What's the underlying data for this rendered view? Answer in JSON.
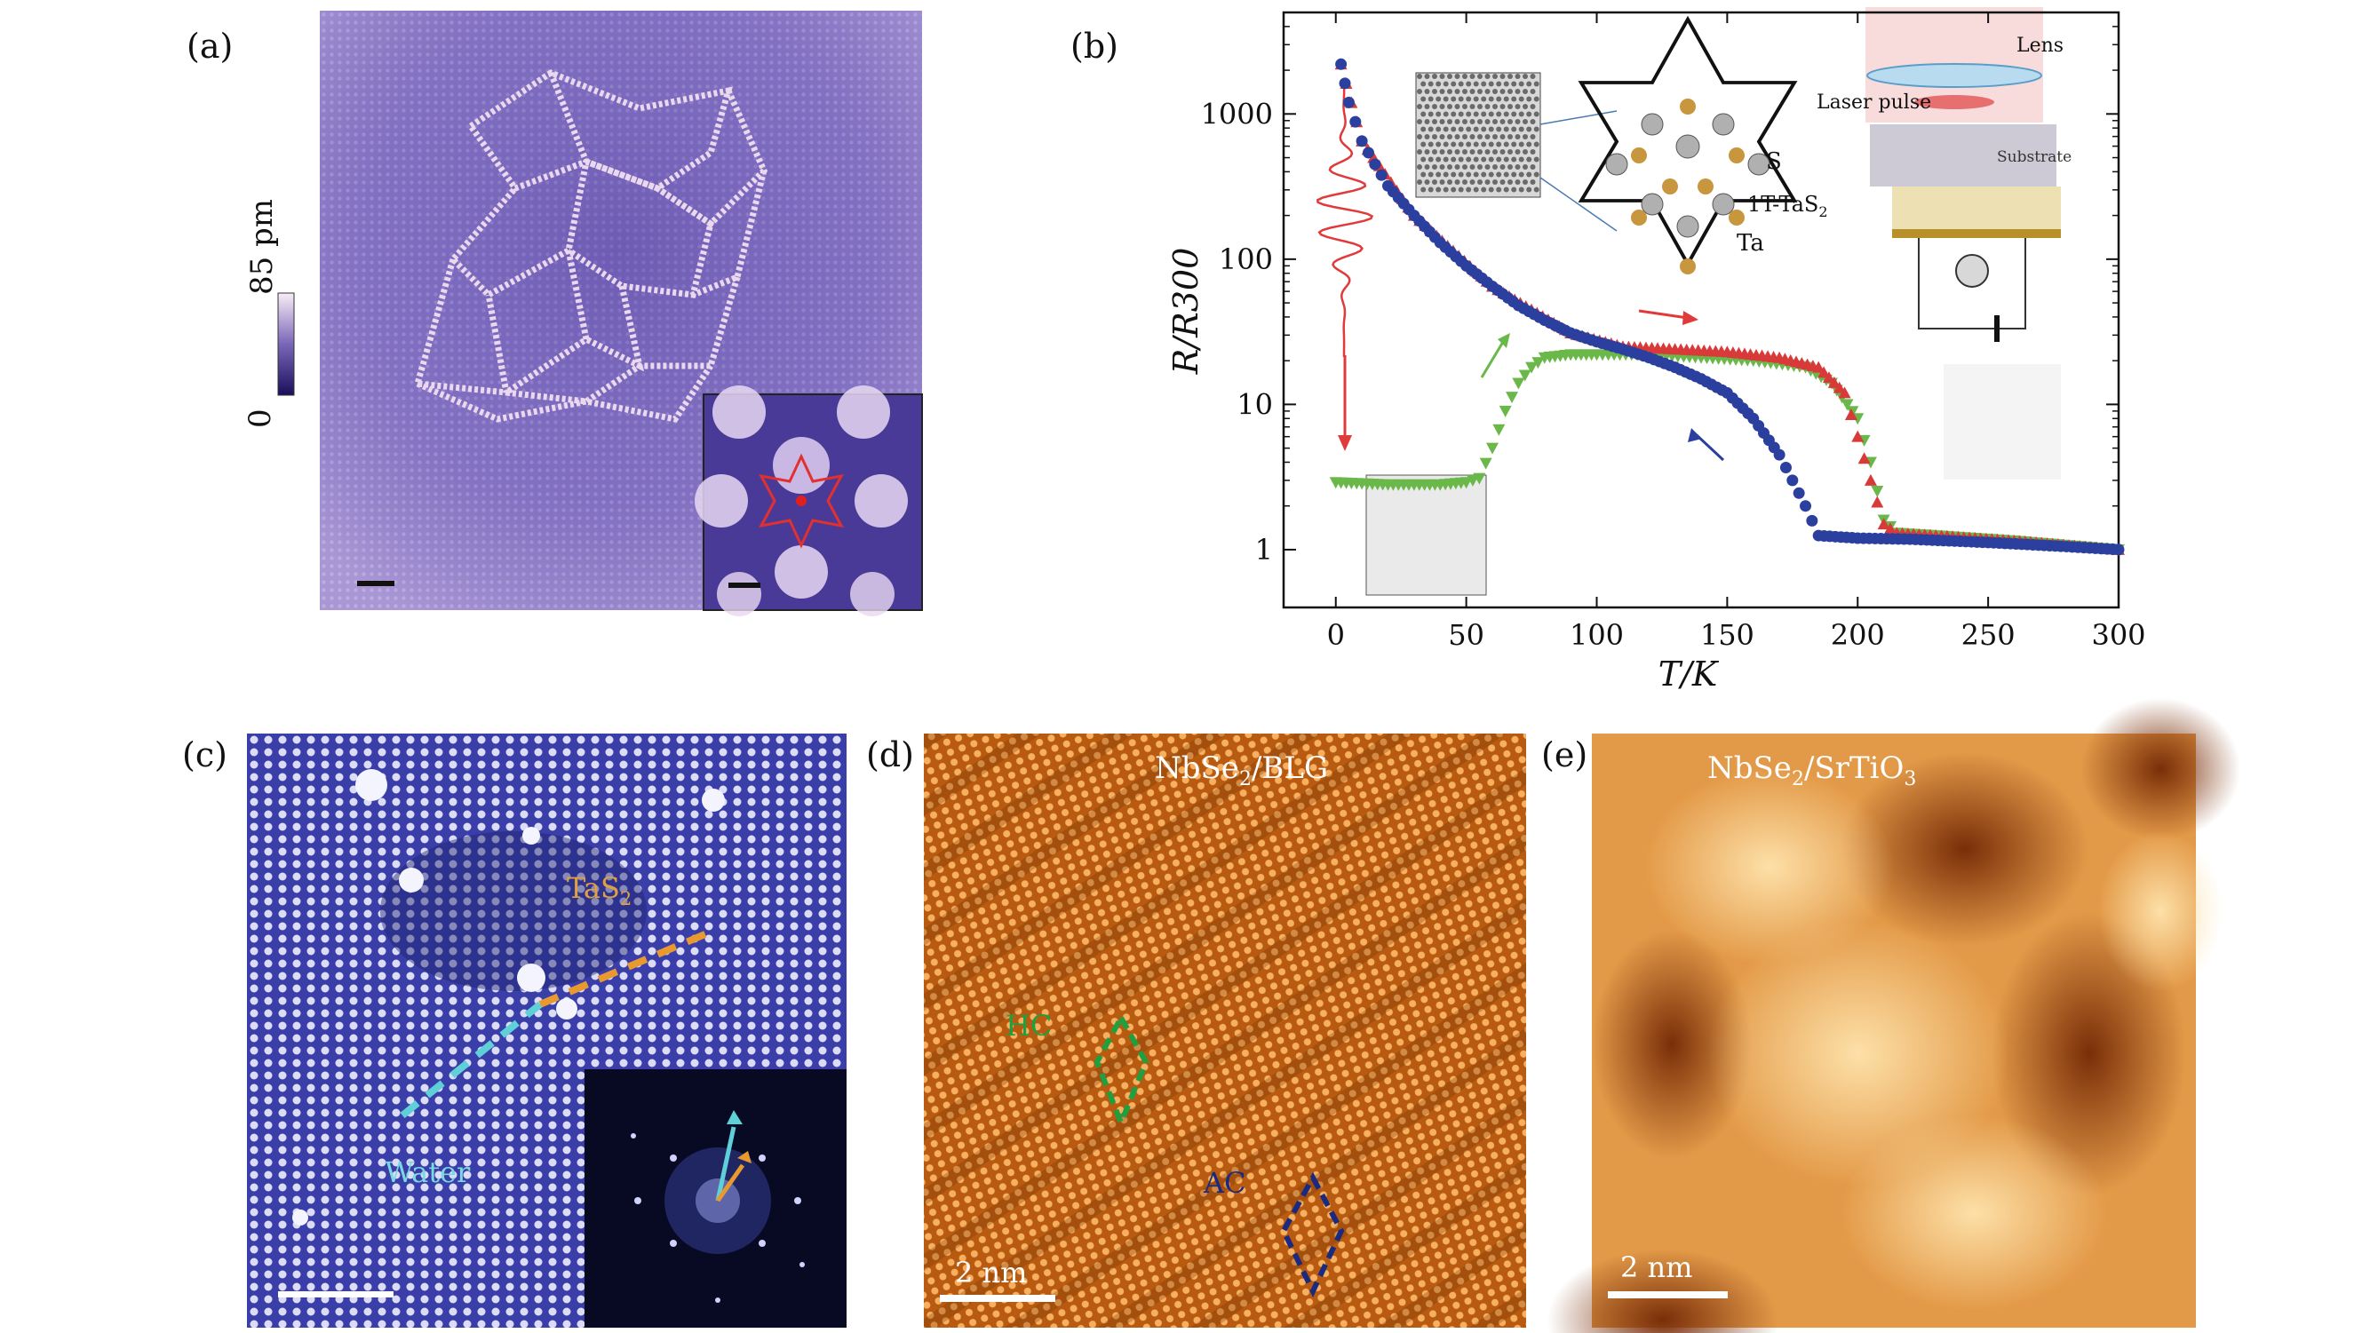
{
  "figure": {
    "panels": [
      {
        "id": "a",
        "label": "(a)"
      },
      {
        "id": "b",
        "label": "(b)"
      },
      {
        "id": "c",
        "label": "(c)"
      },
      {
        "id": "d",
        "label": "(d)"
      },
      {
        "id": "e",
        "label": "(e)"
      }
    ],
    "panel_a": {
      "colorbar_min": "0",
      "colorbar_max": "85 pm",
      "colors": {
        "low": "#1a0f5c",
        "mid": "#7a66b8",
        "high": "#f4e6f0",
        "background": "#8170c0"
      }
    },
    "panel_b": {
      "inset_labels": {
        "lens": "Lens",
        "laser_pulse": "Laser pulse",
        "substrate": "Substrate",
        "s_atom": "S",
        "tas2": "1T-TaS",
        "tas2_sub": "2",
        "ta_atom": "Ta"
      }
    },
    "panel_c": {
      "label_tas2": "TaS",
      "label_tas2_sub": "2",
      "label_water": "Water",
      "colors": {
        "background": "#4a4ec0",
        "orange": "#e89a30",
        "cyan": "#5fd0d8"
      }
    },
    "panel_d": {
      "title": "NbSe",
      "title_sub": "2",
      "title_tail": "/BLG",
      "hc_label": "HC",
      "ac_label": "AC",
      "scale_label": "2 nm",
      "colors": {
        "base": "#c86a18",
        "light": "#f2a850",
        "hc": "#1fa040",
        "ac": "#1a2a80"
      }
    },
    "panel_e": {
      "title": "NbSe",
      "title_sub": "2",
      "title_tail": "/SrTiO",
      "title_sub2": "3",
      "scale_label": "2 nm",
      "colors": {
        "base": "#e8a04c",
        "dark": "#8a3a0c",
        "light": "#fbd08a"
      }
    }
  },
  "chart_data": {
    "type": "scatter",
    "xlabel": "T/K",
    "ylabel": "R/R300",
    "xlim": [
      -20,
      300
    ],
    "ylim": [
      0.4,
      5000
    ],
    "yscale": "log",
    "xticks": [
      0,
      50,
      100,
      150,
      200,
      250,
      300
    ],
    "yticks": [
      1,
      10,
      100,
      1000
    ],
    "series": [
      {
        "color": "#2a3f9e",
        "marker": "circle",
        "x": [
          2,
          5,
          10,
          15,
          20,
          30,
          40,
          50,
          60,
          70,
          80,
          90,
          100,
          110,
          120,
          130,
          140,
          150,
          160,
          170,
          175,
          180,
          185,
          200,
          220,
          250,
          280,
          300
        ],
        "y": [
          2200,
          1200,
          650,
          450,
          320,
          200,
          130,
          90,
          65,
          48,
          38,
          31,
          27,
          24,
          21,
          18,
          15,
          12,
          8,
          4.5,
          3,
          2,
          1.25,
          1.2,
          1.18,
          1.12,
          1.05,
          1.0
        ]
      },
      {
        "color": "#d83a3a",
        "marker": "triangle",
        "x": [
          2,
          10,
          30,
          60,
          90,
          110,
          130,
          150,
          170,
          185,
          195,
          200,
          205,
          210,
          215,
          230,
          260,
          300
        ],
        "y": [
          2200,
          650,
          200,
          65,
          31,
          25,
          24,
          23,
          21,
          18,
          12,
          6,
          3,
          1.5,
          1.3,
          1.25,
          1.15,
          1.0
        ]
      },
      {
        "color": "#6ab84a",
        "marker": "triangle-down",
        "x": [
          0,
          10,
          20,
          30,
          40,
          50,
          55,
          60,
          65,
          70,
          75,
          80,
          90,
          100,
          120,
          140,
          160,
          180,
          190,
          200,
          205,
          210,
          215,
          230,
          260,
          300
        ],
        "y": [
          2.9,
          2.85,
          2.8,
          2.8,
          2.8,
          2.9,
          3.1,
          5,
          9,
          14,
          18,
          21,
          22,
          22,
          22,
          21,
          20,
          18,
          14,
          8,
          4,
          1.6,
          1.3,
          1.25,
          1.15,
          1.0
        ]
      }
    ]
  }
}
